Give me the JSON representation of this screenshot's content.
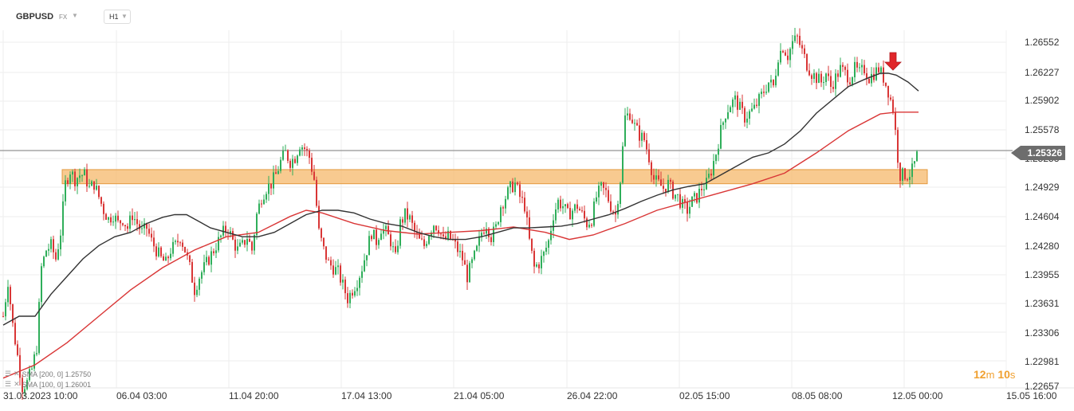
{
  "header": {
    "symbol": "GBPUSD",
    "market": "FX",
    "timeframe": "H1",
    "dropdown_icon": "chevron-down-icon"
  },
  "price_axis": {
    "ticks": [
      "1.26552",
      "1.26227",
      "1.25902",
      "1.25578",
      "1.25253",
      "1.24929",
      "1.24604",
      "1.24280",
      "1.23955",
      "1.23631",
      "1.23306",
      "1.22981",
      "1.22657"
    ],
    "current_price": "1.25326"
  },
  "time_axis": {
    "ticks": [
      "31.03.2023  10:00",
      "06.04  03:00",
      "11.04  20:00",
      "17.04  13:00",
      "21.04  05:00",
      "26.04  22:00",
      "02.05  15:00",
      "08.05  08:00",
      "12.05  00:00",
      "15.05  16:00"
    ]
  },
  "indicators": [
    {
      "label": "SMA [200,  0]  1.25750",
      "color": "#d93636",
      "icons": [
        "list-icon",
        "close-icon"
      ]
    },
    {
      "label": "SMA [100,  0]  1.26001",
      "color": "#333333",
      "icons": [
        "list-icon",
        "close-icon"
      ]
    }
  ],
  "countdown": {
    "minutes": "12",
    "m": "m",
    "seconds": "10",
    "s": "s"
  },
  "colors": {
    "up": "#2fae5a",
    "down": "#d93636",
    "zone": "#f6b86b",
    "sma100": "#333333",
    "sma200": "#d93636",
    "arrow": "#e0262a"
  },
  "chart_data": {
    "type": "candlestick",
    "instrument": "GBPUSD",
    "timeframe": "H1",
    "ylim": [
      1.226,
      1.268
    ],
    "current_price": 1.25326,
    "support_zone": [
      1.2495,
      1.2511
    ],
    "signal": "down-arrow",
    "close_path": [
      [
        0,
        1.2345
      ],
      [
        6,
        1.2385
      ],
      [
        12,
        1.2335
      ],
      [
        18,
        1.23
      ],
      [
        24,
        1.2265
      ],
      [
        30,
        1.227
      ],
      [
        36,
        1.2285
      ],
      [
        42,
        1.231
      ],
      [
        48,
        1.24
      ],
      [
        54,
        1.242
      ],
      [
        60,
        1.2425
      ],
      [
        66,
        1.241
      ],
      [
        72,
        1.244
      ],
      [
        78,
        1.2495
      ],
      [
        84,
        1.251
      ],
      [
        90,
        1.25
      ],
      [
        96,
        1.2505
      ],
      [
        102,
        1.2505
      ],
      [
        108,
        1.249
      ],
      [
        114,
        1.2495
      ],
      [
        120,
        1.248
      ],
      [
        126,
        1.2465
      ],
      [
        132,
        1.2455
      ],
      [
        138,
        1.246
      ],
      [
        144,
        1.245
      ],
      [
        150,
        1.2455
      ],
      [
        156,
        1.2445
      ],
      [
        162,
        1.246
      ],
      [
        168,
        1.245
      ],
      [
        174,
        1.244
      ],
      [
        180,
        1.2445
      ],
      [
        186,
        1.243
      ],
      [
        192,
        1.242
      ],
      [
        198,
        1.241
      ],
      [
        204,
        1.2405
      ],
      [
        210,
        1.242
      ],
      [
        216,
        1.2425
      ],
      [
        222,
        1.2435
      ],
      [
        228,
        1.242
      ],
      [
        234,
        1.24
      ],
      [
        240,
        1.2375
      ],
      [
        246,
        1.239
      ],
      [
        252,
        1.24
      ],
      [
        258,
        1.241
      ],
      [
        264,
        1.242
      ],
      [
        270,
        1.243
      ],
      [
        276,
        1.244
      ],
      [
        282,
        1.2445
      ],
      [
        288,
        1.243
      ],
      [
        294,
        1.242
      ],
      [
        300,
        1.2425
      ],
      [
        306,
        1.2435
      ],
      [
        312,
        1.242
      ],
      [
        318,
        1.246
      ],
      [
        324,
        1.248
      ],
      [
        330,
        1.249
      ],
      [
        336,
        1.2495
      ],
      [
        342,
        1.2505
      ],
      [
        348,
        1.252
      ],
      [
        354,
        1.253
      ],
      [
        360,
        1.252
      ],
      [
        366,
        1.2525
      ],
      [
        372,
        1.254
      ],
      [
        378,
        1.2535
      ],
      [
        384,
        1.2525
      ],
      [
        390,
        1.25
      ],
      [
        396,
        1.244
      ],
      [
        402,
        1.242
      ],
      [
        408,
        1.2405
      ],
      [
        414,
        1.24
      ],
      [
        420,
        1.2395
      ],
      [
        426,
        1.238
      ],
      [
        432,
        1.2365
      ],
      [
        438,
        1.2375
      ],
      [
        444,
        1.2385
      ],
      [
        450,
        1.24
      ],
      [
        456,
        1.242
      ],
      [
        462,
        1.244
      ],
      [
        468,
        1.243
      ],
      [
        474,
        1.2445
      ],
      [
        480,
        1.244
      ],
      [
        486,
        1.243
      ],
      [
        492,
        1.241
      ],
      [
        498,
        1.245
      ],
      [
        504,
        1.246
      ],
      [
        510,
        1.2455
      ],
      [
        516,
        1.244
      ],
      [
        522,
        1.243
      ],
      [
        528,
        1.2425
      ],
      [
        534,
        1.244
      ],
      [
        540,
        1.245
      ],
      [
        546,
        1.2445
      ],
      [
        552,
        1.243
      ],
      [
        558,
        1.2435
      ],
      [
        564,
        1.243
      ],
      [
        570,
        1.242
      ],
      [
        576,
        1.241
      ],
      [
        582,
        1.239
      ],
      [
        588,
        1.2405
      ],
      [
        594,
        1.242
      ],
      [
        600,
        1.244
      ],
      [
        606,
        1.245
      ],
      [
        612,
        1.2435
      ],
      [
        618,
        1.2445
      ],
      [
        624,
        1.247
      ],
      [
        630,
        1.248
      ],
      [
        636,
        1.249
      ],
      [
        642,
        1.2495
      ],
      [
        648,
        1.248
      ],
      [
        654,
        1.247
      ],
      [
        660,
        1.243
      ],
      [
        666,
        1.24
      ],
      [
        672,
        1.2405
      ],
      [
        678,
        1.2415
      ],
      [
        684,
        1.243
      ],
      [
        690,
        1.246
      ],
      [
        696,
        1.2475
      ],
      [
        702,
        1.247
      ],
      [
        708,
        1.246
      ],
      [
        714,
        1.2465
      ],
      [
        720,
        1.247
      ],
      [
        726,
        1.246
      ],
      [
        732,
        1.245
      ],
      [
        738,
        1.2455
      ],
      [
        744,
        1.248
      ],
      [
        750,
        1.249
      ],
      [
        756,
        1.2485
      ],
      [
        762,
        1.247
      ],
      [
        768,
        1.246
      ],
      [
        774,
        1.25
      ],
      [
        780,
        1.257
      ],
      [
        786,
        1.2575
      ],
      [
        792,
        1.256
      ],
      [
        798,
        1.255
      ],
      [
        804,
        1.2545
      ],
      [
        810,
        1.2525
      ],
      [
        816,
        1.25
      ],
      [
        822,
        1.2495
      ],
      [
        828,
        1.249
      ],
      [
        834,
        1.2495
      ],
      [
        840,
        1.2485
      ],
      [
        846,
        1.248
      ],
      [
        852,
        1.247
      ],
      [
        858,
        1.2465
      ],
      [
        864,
        1.2475
      ],
      [
        870,
        1.248
      ],
      [
        876,
        1.249
      ],
      [
        882,
        1.2495
      ],
      [
        888,
        1.251
      ],
      [
        894,
        1.253
      ],
      [
        900,
        1.2555
      ],
      [
        906,
        1.2575
      ],
      [
        912,
        1.2585
      ],
      [
        918,
        1.259
      ],
      [
        924,
        1.258
      ],
      [
        930,
        1.257
      ],
      [
        936,
        1.2575
      ],
      [
        942,
        1.258
      ],
      [
        948,
        1.259
      ],
      [
        954,
        1.26
      ],
      [
        960,
        1.261
      ],
      [
        966,
        1.2605
      ],
      [
        972,
        1.264
      ],
      [
        978,
        1.265
      ],
      [
        984,
        1.264
      ],
      [
        990,
        1.2655
      ],
      [
        996,
        1.266
      ],
      [
        1002,
        1.2645
      ],
      [
        1008,
        1.263
      ],
      [
        1014,
        1.262
      ],
      [
        1020,
        1.2615
      ],
      [
        1026,
        1.261
      ],
      [
        1032,
        1.262
      ],
      [
        1038,
        1.2605
      ],
      [
        1044,
        1.2615
      ],
      [
        1050,
        1.2625
      ],
      [
        1056,
        1.262
      ],
      [
        1062,
        1.2615
      ],
      [
        1068,
        1.2625
      ],
      [
        1074,
        1.262
      ],
      [
        1080,
        1.2625
      ],
      [
        1086,
        1.2615
      ],
      [
        1092,
        1.262
      ],
      [
        1098,
        1.2625
      ],
      [
        1104,
        1.2615
      ],
      [
        1110,
        1.26
      ],
      [
        1116,
        1.258
      ],
      [
        1120,
        1.2545
      ],
      [
        1124,
        1.2505
      ],
      [
        1128,
        1.2505
      ],
      [
        1132,
        1.2505
      ],
      [
        1136,
        1.2505
      ],
      [
        1140,
        1.251
      ],
      [
        1144,
        1.252
      ],
      [
        1148,
        1.2533
      ]
    ],
    "sma100": [
      [
        0,
        1.2335
      ],
      [
        20,
        1.2345
      ],
      [
        40,
        1.2345
      ],
      [
        60,
        1.237
      ],
      [
        80,
        1.239
      ],
      [
        100,
        1.241
      ],
      [
        120,
        1.2425
      ],
      [
        140,
        1.2435
      ],
      [
        160,
        1.244
      ],
      [
        180,
        1.245
      ],
      [
        200,
        1.2457
      ],
      [
        215,
        1.246
      ],
      [
        230,
        1.246
      ],
      [
        240,
        1.2455
      ],
      [
        260,
        1.2445
      ],
      [
        280,
        1.244
      ],
      [
        300,
        1.2435
      ],
      [
        320,
        1.2435
      ],
      [
        340,
        1.244
      ],
      [
        360,
        1.245
      ],
      [
        380,
        1.246
      ],
      [
        400,
        1.2465
      ],
      [
        420,
        1.2465
      ],
      [
        440,
        1.2462
      ],
      [
        460,
        1.2455
      ],
      [
        480,
        1.245
      ],
      [
        500,
        1.2447
      ],
      [
        520,
        1.244
      ],
      [
        540,
        1.2435
      ],
      [
        560,
        1.2432
      ],
      [
        580,
        1.2432
      ],
      [
        600,
        1.2435
      ],
      [
        620,
        1.244
      ],
      [
        640,
        1.2445
      ],
      [
        660,
        1.2445
      ],
      [
        680,
        1.2446
      ],
      [
        700,
        1.2447
      ],
      [
        720,
        1.245
      ],
      [
        740,
        1.2455
      ],
      [
        760,
        1.246
      ],
      [
        780,
        1.2467
      ],
      [
        800,
        1.2475
      ],
      [
        820,
        1.2482
      ],
      [
        840,
        1.2488
      ],
      [
        860,
        1.2492
      ],
      [
        880,
        1.2495
      ],
      [
        900,
        1.2505
      ],
      [
        920,
        1.2515
      ],
      [
        940,
        1.2525
      ],
      [
        960,
        1.253
      ],
      [
        980,
        1.254
      ],
      [
        1000,
        1.2555
      ],
      [
        1020,
        1.2575
      ],
      [
        1040,
        1.259
      ],
      [
        1060,
        1.2605
      ],
      [
        1080,
        1.2613
      ],
      [
        1100,
        1.262
      ],
      [
        1110,
        1.262
      ],
      [
        1120,
        1.2618
      ],
      [
        1135,
        1.261
      ],
      [
        1148,
        1.26
      ]
    ],
    "sma200": [
      [
        0,
        1.2275
      ],
      [
        40,
        1.229
      ],
      [
        80,
        1.2315
      ],
      [
        120,
        1.2345
      ],
      [
        160,
        1.2375
      ],
      [
        200,
        1.24
      ],
      [
        240,
        1.242
      ],
      [
        280,
        1.2435
      ],
      [
        320,
        1.244
      ],
      [
        360,
        1.2458
      ],
      [
        380,
        1.2465
      ],
      [
        400,
        1.2462
      ],
      [
        440,
        1.245
      ],
      [
        480,
        1.2442
      ],
      [
        520,
        1.2438
      ],
      [
        560,
        1.244
      ],
      [
        600,
        1.2442
      ],
      [
        640,
        1.2446
      ],
      [
        680,
        1.244
      ],
      [
        710,
        1.2432
      ],
      [
        740,
        1.2437
      ],
      [
        780,
        1.245
      ],
      [
        820,
        1.2465
      ],
      [
        860,
        1.2475
      ],
      [
        900,
        1.2485
      ],
      [
        940,
        1.2495
      ],
      [
        980,
        1.2507
      ],
      [
        1020,
        1.253
      ],
      [
        1060,
        1.2555
      ],
      [
        1100,
        1.2574
      ],
      [
        1120,
        1.2576
      ],
      [
        1148,
        1.2576
      ]
    ]
  }
}
